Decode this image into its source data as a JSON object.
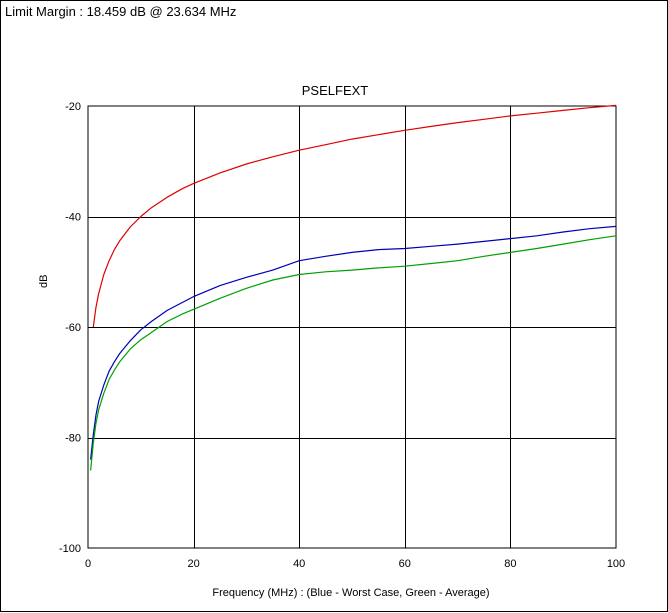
{
  "header": {
    "limit_margin_text": "Limit Margin : 18.459 dB @ 23.634 MHz"
  },
  "chart_data": {
    "type": "line",
    "title": "PSELFEXT",
    "xlabel": "Frequency (MHz) : (Blue - Worst Case, Green - Average)",
    "ylabel": "dB",
    "xlim": [
      0,
      100
    ],
    "ylim": [
      -100,
      -20
    ],
    "xticks": [
      0,
      20,
      40,
      60,
      80,
      100
    ],
    "yticks": [
      -100,
      -80,
      -60,
      -40,
      -20
    ],
    "grid": true,
    "series": [
      {
        "color": "#e00000",
        "x": [
          1,
          1.5,
          2,
          3,
          4,
          5,
          6,
          8,
          10,
          12,
          15,
          18,
          20,
          25,
          30,
          35,
          40,
          45,
          50,
          55,
          60,
          65,
          70,
          75,
          80,
          85,
          90,
          95,
          100
        ],
        "y": [
          -60,
          -56.5,
          -54,
          -50.5,
          -48,
          -46,
          -44.4,
          -41.9,
          -40,
          -38.4,
          -36.5,
          -34.9,
          -34,
          -32.1,
          -30.5,
          -29.2,
          -28,
          -27,
          -26,
          -25.2,
          -24.4,
          -23.7,
          -23,
          -22.4,
          -21.8,
          -21.3,
          -20.8,
          -20.3,
          -19.9
        ]
      },
      {
        "color": "#0000b4",
        "x": [
          0.5,
          1,
          1.5,
          2,
          3,
          4,
          5,
          6,
          8,
          10,
          12,
          15,
          18,
          20,
          25,
          30,
          35,
          40,
          45,
          50,
          55,
          60,
          65,
          70,
          75,
          80,
          85,
          90,
          95,
          100
        ],
        "y": [
          -84,
          -79.5,
          -76,
          -73.5,
          -70.5,
          -68,
          -66.3,
          -64.8,
          -62.5,
          -60.5,
          -59,
          -57,
          -55.5,
          -54.5,
          -52.5,
          -51,
          -49.7,
          -48,
          -47.2,
          -46.5,
          -46,
          -45.8,
          -45.4,
          -45,
          -44.5,
          -44,
          -43.5,
          -42.8,
          -42.2,
          -41.8
        ]
      },
      {
        "color": "#00a000",
        "x": [
          0.5,
          1,
          1.5,
          2,
          3,
          4,
          5,
          6,
          8,
          10,
          12,
          15,
          18,
          20,
          25,
          30,
          35,
          40,
          45,
          50,
          55,
          60,
          65,
          70,
          75,
          80,
          85,
          90,
          95,
          100
        ],
        "y": [
          -86,
          -81,
          -77.5,
          -75,
          -72,
          -69.5,
          -67.8,
          -66.3,
          -64,
          -62.3,
          -61,
          -59,
          -57.6,
          -56.8,
          -54.8,
          -53,
          -51.5,
          -50.5,
          -50,
          -49.7,
          -49.3,
          -49,
          -48.5,
          -48,
          -47.2,
          -46.5,
          -45.8,
          -45,
          -44.2,
          -43.5
        ]
      }
    ]
  }
}
